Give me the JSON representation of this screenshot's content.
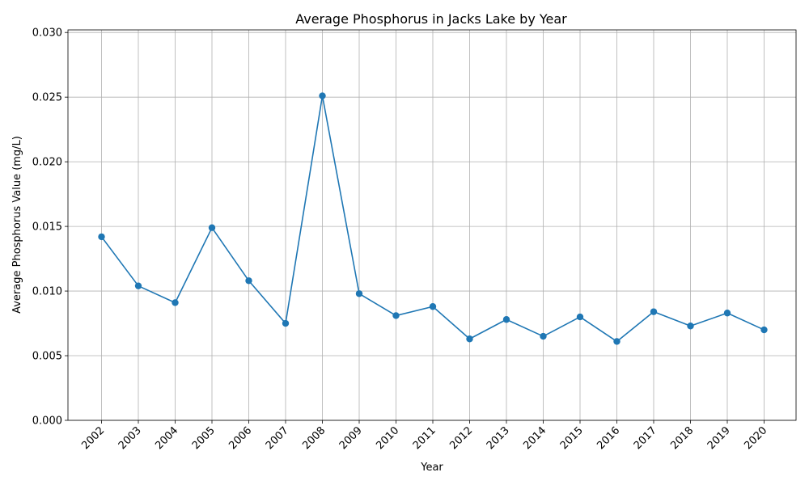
{
  "chart_data": {
    "type": "line",
    "title": "Average Phosphorus in Jacks Lake by Year",
    "xlabel": "Year",
    "ylabel": "Average Phosphorus Value (mg/L)",
    "ylim": [
      0,
      0.0302
    ],
    "yticks": [
      "0.000",
      "0.005",
      "0.010",
      "0.015",
      "0.020",
      "0.025",
      "0.030"
    ],
    "grid": true,
    "color": "#1f77b4",
    "series": [
      {
        "x": [
          "2002",
          "2003",
          "2004",
          "2005",
          "2006",
          "2007",
          "2008",
          "2009",
          "2010",
          "2011",
          "2012",
          "2013",
          "2014",
          "2015",
          "2016",
          "2017",
          "2018",
          "2019",
          "2020"
        ],
        "values": [
          0.0142,
          0.0104,
          0.0091,
          0.0149,
          0.0108,
          0.0075,
          0.0251,
          0.0098,
          0.0081,
          0.0088,
          0.0063,
          0.0078,
          0.0065,
          0.008,
          0.0061,
          0.0084,
          0.0073,
          0.0083,
          0.007
        ]
      }
    ]
  }
}
